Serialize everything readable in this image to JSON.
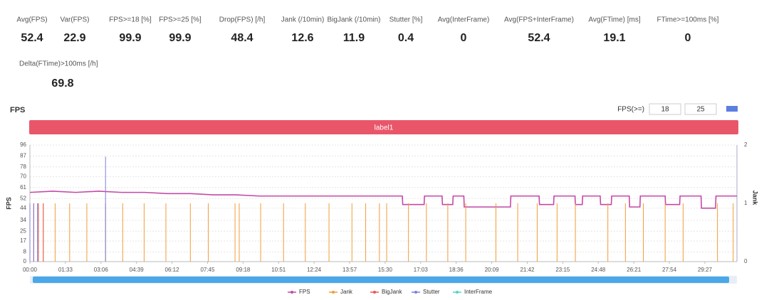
{
  "stats": [
    {
      "label": "Avg(FPS)",
      "value": 52.4
    },
    {
      "label": "Var(FPS)",
      "value": 22.9
    },
    {
      "label": "FPS>=18 [%]",
      "value": 99.9
    },
    {
      "label": "FPS>=25 [%]",
      "value": 99.9
    },
    {
      "label": "Drop(FPS) [/h]",
      "value": 48.4
    },
    {
      "label": "Jank (/10min)",
      "value": 12.6
    },
    {
      "label": "BigJank (/10min)",
      "value": 11.9
    },
    {
      "label": "Stutter [%]",
      "value": 0.4
    },
    {
      "label": "Avg(InterFrame)",
      "value": 0
    },
    {
      "label": "Avg(FPS+InterFrame)",
      "value": 52.4
    },
    {
      "label": "Avg(FTime) [ms]",
      "value": 19.1
    },
    {
      "label": "FTime>=100ms [%]",
      "value": 0
    },
    {
      "label": "Delta(FTime)>100ms [/h]",
      "value": 69.8
    }
  ],
  "chart_data": {
    "type": "line",
    "title": "FPS",
    "threshold_label": "FPS(>=)",
    "thresholds": [
      18,
      25
    ],
    "banner": "label1",
    "ylabel": "FPS",
    "y2label": "Jank",
    "xlim": [
      0,
      1851
    ],
    "xticks": [
      {
        "value": 0,
        "label": "00:00"
      },
      {
        "value": 93,
        "label": "01:33"
      },
      {
        "value": 186,
        "label": "03:06"
      },
      {
        "value": 279,
        "label": "04:39"
      },
      {
        "value": 372,
        "label": "06:12"
      },
      {
        "value": 465,
        "label": "07:45"
      },
      {
        "value": 558,
        "label": "09:18"
      },
      {
        "value": 651,
        "label": "10:51"
      },
      {
        "value": 744,
        "label": "12:24"
      },
      {
        "value": 837,
        "label": "13:57"
      },
      {
        "value": 930,
        "label": "15:30"
      },
      {
        "value": 1023,
        "label": "17:03"
      },
      {
        "value": 1116,
        "label": "18:36"
      },
      {
        "value": 1209,
        "label": "20:09"
      },
      {
        "value": 1302,
        "label": "21:42"
      },
      {
        "value": 1395,
        "label": "23:15"
      },
      {
        "value": 1488,
        "label": "24:48"
      },
      {
        "value": 1581,
        "label": "26:21"
      },
      {
        "value": 1674,
        "label": "27:54"
      },
      {
        "value": 1767,
        "label": "29:27"
      }
    ],
    "ylim": [
      0,
      96
    ],
    "yticks": [
      0,
      8,
      17,
      25,
      34,
      44,
      52,
      61,
      70,
      78,
      87,
      96
    ],
    "y2lim": [
      0,
      2
    ],
    "y2ticks": [
      0,
      1,
      2
    ],
    "series": [
      {
        "name": "FPS",
        "color": "#c44aa6",
        "x": [
          0,
          60,
          120,
          180,
          240,
          300,
          360,
          420,
          480,
          540,
          600,
          700,
          800,
          900,
          975,
          976,
          1032,
          1033,
          1079,
          1080,
          1107,
          1108,
          1136,
          1137,
          1258,
          1259,
          1333,
          1334,
          1371,
          1372,
          1427,
          1428,
          1446,
          1447,
          1493,
          1494,
          1522,
          1523,
          1569,
          1570,
          1597,
          1598,
          1663,
          1664,
          1701,
          1702,
          1757,
          1758,
          1795,
          1796,
          1851
        ],
        "values": [
          57,
          58,
          57,
          58,
          57,
          57,
          56,
          56,
          55,
          55,
          54,
          54,
          54,
          54,
          54,
          47,
          47,
          54,
          54,
          47,
          47,
          54,
          54,
          45,
          45,
          54,
          54,
          47,
          47,
          54,
          54,
          47,
          47,
          54,
          54,
          47,
          47,
          54,
          54,
          45,
          45,
          54,
          54,
          47,
          47,
          54,
          54,
          44,
          44,
          54,
          54
        ]
      },
      {
        "name": "Jank",
        "color": "#f39c38",
        "axis": "y2",
        "x": [
          0,
          10,
          22,
          35,
          66,
          104,
          149,
          198,
          243,
          299,
          356,
          420,
          467,
          537,
          548,
          604,
          664,
          721,
          783,
          843,
          879,
          915,
          934,
          991,
          1038,
          1094,
          1141,
          1220,
          1277,
          1328,
          1380,
          1428,
          1513,
          1559,
          1606,
          1663,
          1710,
          1800,
          1841
        ],
        "values": [
          1,
          1,
          1,
          1,
          1,
          1,
          1,
          1,
          1,
          1,
          1,
          1,
          1,
          1,
          1,
          1,
          1,
          1,
          1,
          1,
          1,
          1,
          1,
          1,
          1,
          1,
          1,
          1,
          1,
          1,
          1,
          1,
          1,
          1,
          1,
          1,
          1,
          1,
          1
        ]
      },
      {
        "name": "BigJank",
        "color": "#e8584f",
        "axis": "y2",
        "x": [
          0,
          10,
          22,
          35
        ],
        "values": [
          1,
          1,
          1,
          1
        ]
      },
      {
        "name": "Stutter",
        "color": "#7b7fe0",
        "axis": "y2",
        "x": [
          0,
          10,
          20,
          198
        ],
        "values": [
          1,
          1,
          1,
          1.8
        ]
      },
      {
        "name": "InterFrame",
        "color": "#4fd8c0",
        "axis": "y2",
        "x": [],
        "values": []
      }
    ]
  }
}
